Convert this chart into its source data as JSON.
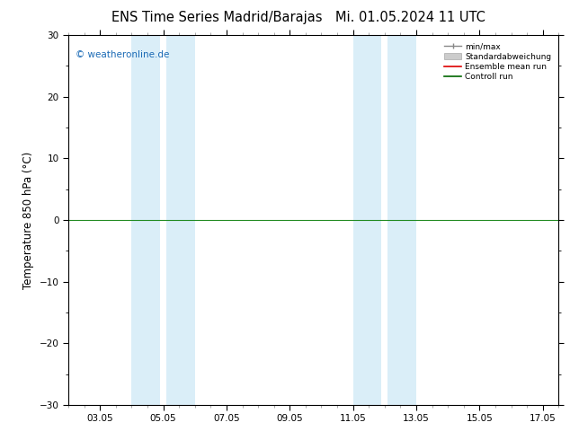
{
  "title_left": "ENS Time Series Madrid/Barajas",
  "title_right": "Mi. 01.05.2024 11 UTC",
  "ylabel": "Temperature 850 hPa (°C)",
  "ylim": [
    -30,
    30
  ],
  "yticks": [
    -30,
    -20,
    -10,
    0,
    10,
    20,
    30
  ],
  "xlim": [
    0,
    15.5
  ],
  "xtick_labels": [
    "03.05",
    "05.05",
    "07.05",
    "09.05",
    "11.05",
    "13.05",
    "15.05",
    "17.05"
  ],
  "xtick_positions": [
    1,
    3,
    5,
    7,
    9,
    11,
    13,
    15
  ],
  "shaded_bands": [
    {
      "x_start": 2.0,
      "x_end": 2.9,
      "color": "#daeef8"
    },
    {
      "x_start": 3.1,
      "x_end": 4.0,
      "color": "#daeef8"
    },
    {
      "x_start": 9.0,
      "x_end": 9.9,
      "color": "#daeef8"
    },
    {
      "x_start": 10.1,
      "x_end": 11.0,
      "color": "#daeef8"
    }
  ],
  "watermark": "© weatheronline.de",
  "watermark_color": "#1a6ab5",
  "legend_labels": [
    "min/max",
    "Standardabweichung",
    "Ensemble mean run",
    "Controll run"
  ],
  "legend_line_color": "#888888",
  "legend_fill_color": "#cccccc",
  "legend_red": "#dd0000",
  "legend_green": "#006600",
  "background_color": "#ffffff",
  "plot_bg_color": "#ffffff",
  "zero_line_color": "#228B22",
  "title_fontsize": 10.5,
  "tick_fontsize": 7.5,
  "ylabel_fontsize": 8.5
}
